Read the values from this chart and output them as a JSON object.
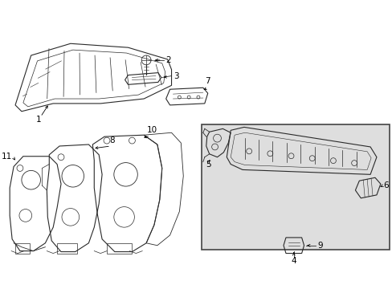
{
  "bg_color": "#ffffff",
  "line_color": "#2a2a2a",
  "label_color": "#000000",
  "inset_bg": "#dedede",
  "inset_border": "#444444"
}
